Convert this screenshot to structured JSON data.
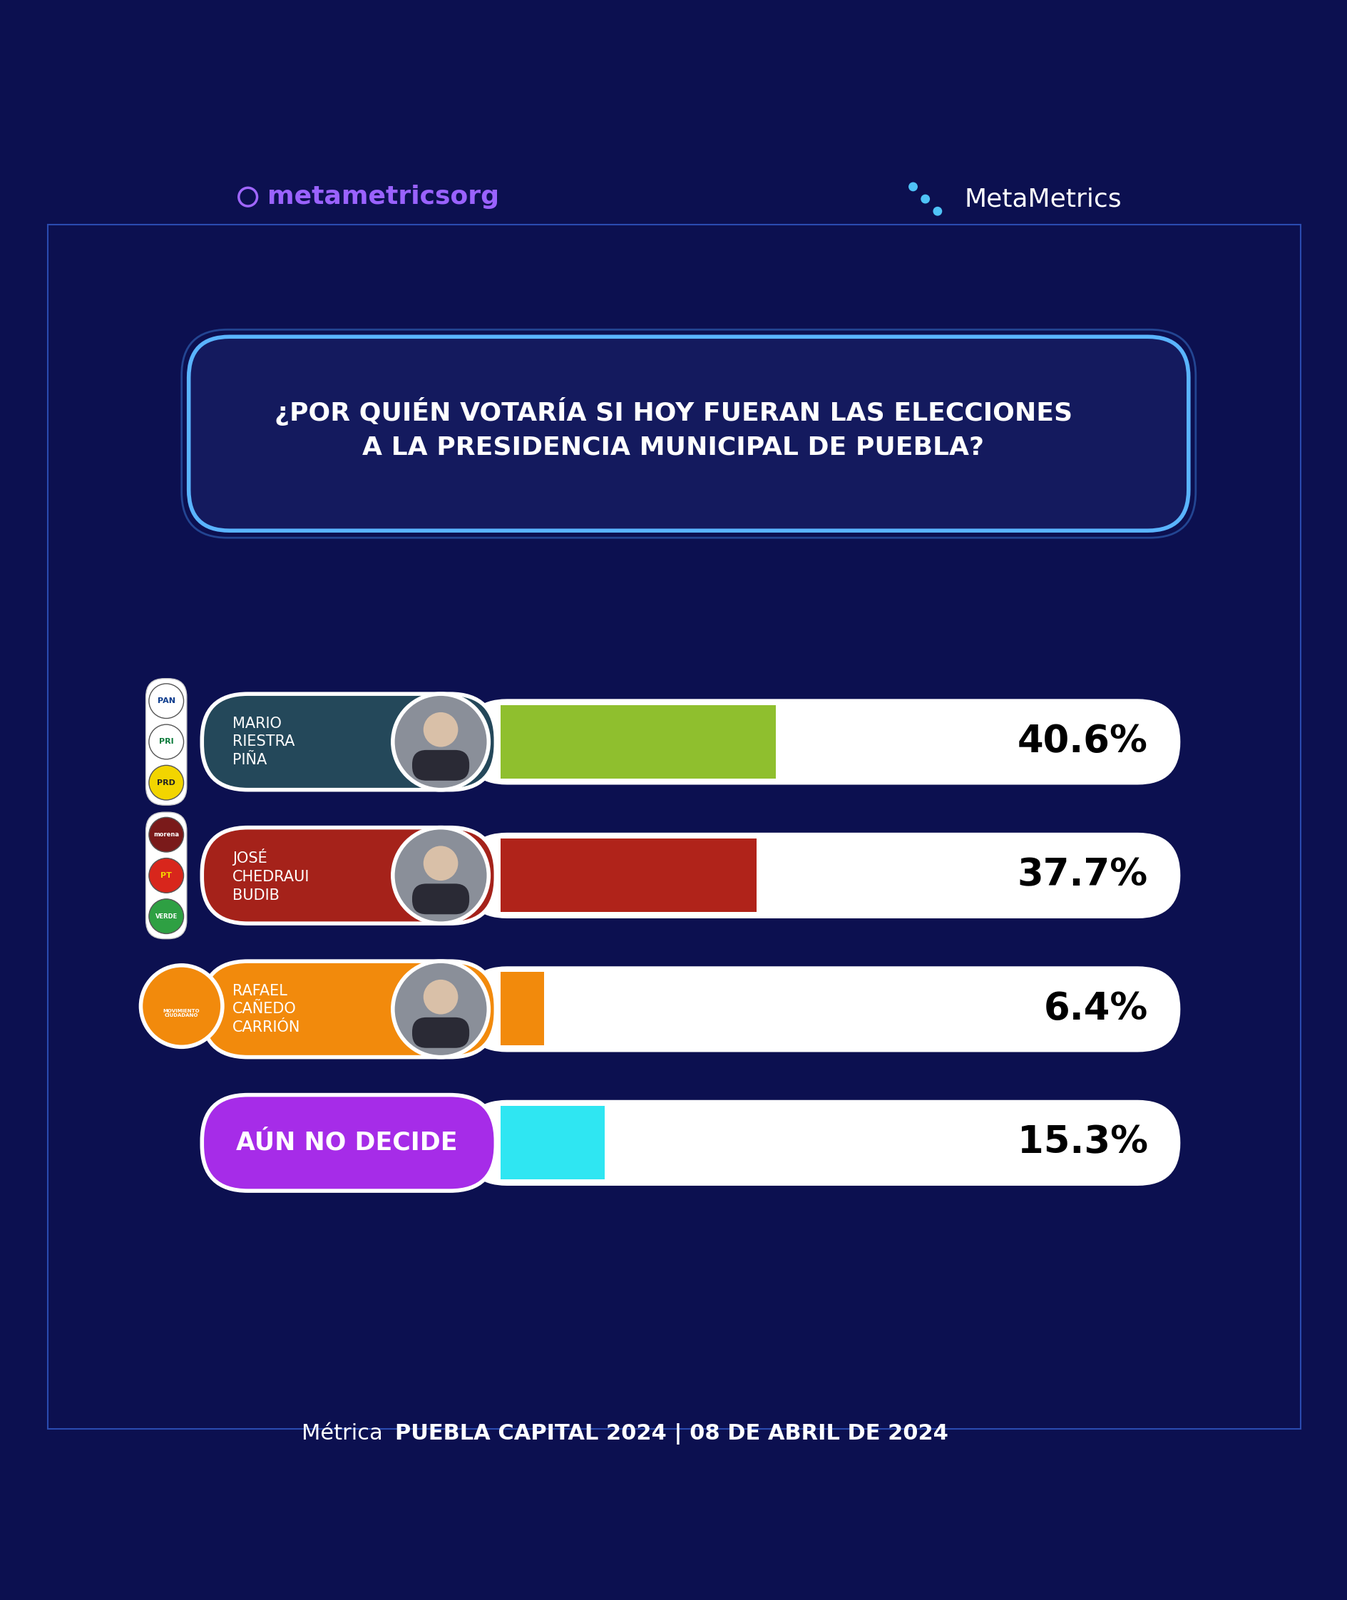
{
  "header": {
    "instagram": "metametricsorg",
    "brand": "MetaMetrics"
  },
  "chart_data": {
    "type": "bar",
    "orientation": "horizontal",
    "title": "¿POR QUIÉN VOTARÍA SI HOY FUERAN LAS ELECCIONES\nA LA PRESIDENCIA MUNICIPAL DE PUEBLA?",
    "categories": [
      "MARIO\nRIESTRA\nPIÑA",
      "JOSÉ\nCHEDRAUI\nBUDIB",
      "RAFAEL\nCAÑEDO\nCARRIÓN",
      "AÚN NO DECIDE"
    ],
    "parties": [
      [
        "PAN",
        "PRI",
        "PRD"
      ],
      [
        "morena",
        "PT",
        "VERDE"
      ],
      [
        "MOVIMIENTO\nCIUDADANO"
      ],
      []
    ],
    "values": [
      40.6,
      37.7,
      6.4,
      15.3
    ],
    "value_labels": [
      "40.6%",
      "37.7%",
      "6.4%",
      "15.3%"
    ],
    "colors": [
      "#8fbf2e",
      "#b0231a",
      "#f28a0c",
      "#2fe6f2"
    ],
    "xlim": [
      0,
      100
    ],
    "data_labels": true,
    "tick_labels": false,
    "grid": false
  },
  "footer": {
    "prefix": "Métrica",
    "text": "PUEBLA CAPITAL 2024 | 08 DE ABRIL DE 2024"
  }
}
